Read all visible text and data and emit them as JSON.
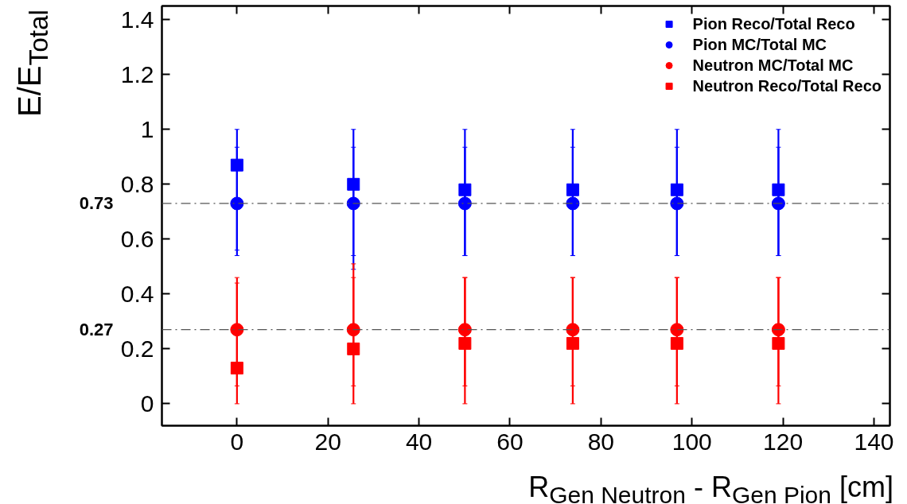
{
  "chart_data": {
    "type": "scatter",
    "xlabel": "R$_{Gen Neutron}$ - R$_{Gen Pion}$ [cm]",
    "ylabel": "E/E$_{Total}$",
    "x": [
      0,
      25.6,
      50.1,
      73.8,
      96.7,
      119
    ],
    "series": [
      {
        "name": "Pion Reco/Total Reco",
        "color": "#0000ff",
        "marker": "square",
        "values": [
          0.87,
          0.8,
          0.78,
          0.78,
          0.78,
          0.78
        ],
        "errors": [
          [
            0.56,
            0.935
          ],
          [
            0.49,
            0.935
          ],
          [
            0.54,
            0.935
          ],
          [
            0.54,
            0.935
          ],
          [
            0.54,
            0.935
          ],
          [
            0.54,
            0.935
          ]
        ]
      },
      {
        "name": "Pion MC/Total MC",
        "color": "#0000ff",
        "marker": "circle",
        "values": [
          0.73,
          0.73,
          0.73,
          0.73,
          0.73,
          0.73
        ],
        "errors": [
          [
            0.54,
            1.0
          ],
          [
            0.54,
            1.0
          ],
          [
            0.54,
            1.0
          ],
          [
            0.54,
            1.0
          ],
          [
            0.54,
            1.0
          ],
          [
            0.54,
            1.0
          ]
        ]
      },
      {
        "name": "Neutron MC/Total MC",
        "color": "#ff0000",
        "marker": "circle",
        "values": [
          0.27,
          0.27,
          0.27,
          0.27,
          0.27,
          0.27
        ],
        "errors": [
          [
            0.0,
            0.46
          ],
          [
            0.0,
            0.46
          ],
          [
            0.0,
            0.46
          ],
          [
            0.0,
            0.46
          ],
          [
            0.0,
            0.46
          ],
          [
            0.0,
            0.46
          ]
        ]
      },
      {
        "name": "Neutron Reco/Total Reco",
        "color": "#ff0000",
        "marker": "square",
        "values": [
          0.13,
          0.2,
          0.22,
          0.22,
          0.22,
          0.22
        ],
        "errors": [
          [
            0.065,
            0.44
          ],
          [
            0.065,
            0.51
          ],
          [
            0.065,
            0.46
          ],
          [
            0.065,
            0.46
          ],
          [
            0.065,
            0.46
          ],
          [
            0.065,
            0.46
          ]
        ]
      }
    ],
    "xlim": [
      -16.5,
      143.5
    ],
    "ylim": [
      -0.08,
      1.45
    ],
    "xticks": [
      0,
      20,
      40,
      60,
      80,
      100,
      120,
      140
    ],
    "yticks": [
      0,
      0.2,
      0.4,
      0.6,
      0.8,
      1,
      1.2,
      1.4
    ],
    "ref_lines": [
      {
        "axis": "y",
        "value": 0.73,
        "label": "0.73",
        "color": "#555555",
        "line_style": "dashdot"
      },
      {
        "axis": "y",
        "value": 0.27,
        "label": "0.27",
        "color": "#555555",
        "line_style": "dashdot"
      }
    ],
    "legend": "top right"
  }
}
